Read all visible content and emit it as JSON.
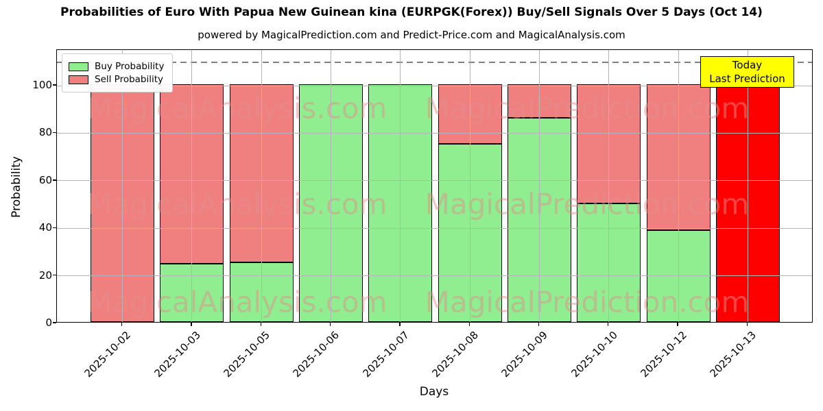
{
  "title": "Probabilities of Euro With Papua New Guinean kina (EURPGK(Forex)) Buy/Sell Signals Over 5 Days (Oct 14)",
  "subtitle": "powered by MagicalPrediction.com and Predict-Price.com and MagicalAnalysis.com",
  "watermarks": {
    "left": "MagicalAnalysis.com",
    "right": "MagicalPrediction.com"
  },
  "annotation": {
    "line1": "Today",
    "line2": "Last Prediction",
    "bg_color": "#FFFF00",
    "border_color": "#000000"
  },
  "legend": {
    "position": "upper left",
    "items": [
      {
        "label": "Buy Probability",
        "color": "#90EE90"
      },
      {
        "label": "Sell Probability",
        "color": "#F08080"
      }
    ]
  },
  "chart_data": {
    "type": "bar",
    "stacked": true,
    "title": "Probabilities of Euro With Papua New Guinean kina (EURPGK(Forex)) Buy/Sell Signals Over 5 Days (Oct 14)",
    "xlabel": "Days",
    "ylabel": "Probability",
    "categories": [
      "2025-10-02",
      "2025-10-03",
      "2025-10-05",
      "2025-10-06",
      "2025-10-07",
      "2025-10-08",
      "2025-10-09",
      "2025-10-10",
      "2025-10-12",
      "2025-10-13"
    ],
    "series": [
      {
        "name": "Buy Probability",
        "color": "#90EE90",
        "values": [
          0,
          24.5,
          25,
          100,
          100,
          75,
          86,
          50,
          38.5,
          0
        ]
      },
      {
        "name": "Sell Probability",
        "color": "#F08080",
        "values": [
          100,
          75.5,
          75,
          0,
          0,
          25,
          14,
          50,
          61.5,
          0
        ]
      }
    ],
    "last_prediction_bar": {
      "category": "2025-10-13",
      "value": 100,
      "color": "#FF0000"
    },
    "yticks": [
      0,
      20,
      40,
      60,
      80,
      100
    ],
    "ylim": [
      0,
      115
    ],
    "dashed_line_y": 110,
    "grid": true,
    "bar_edge_color": "#000000",
    "gridline_color": "#b4b4b4"
  }
}
